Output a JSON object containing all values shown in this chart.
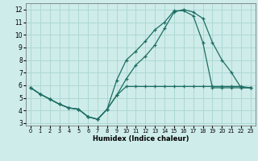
{
  "xlabel": "Humidex (Indice chaleur)",
  "bg_color": "#ceecea",
  "grid_color": "#aed8d4",
  "line_color": "#1e6e64",
  "xlim": [
    -0.5,
    23.5
  ],
  "ylim": [
    2.8,
    12.5
  ],
  "xticks": [
    0,
    1,
    2,
    3,
    4,
    5,
    6,
    7,
    8,
    9,
    10,
    11,
    12,
    13,
    14,
    15,
    16,
    17,
    18,
    19,
    20,
    21,
    22,
    23
  ],
  "yticks": [
    3,
    4,
    5,
    6,
    7,
    8,
    9,
    10,
    11,
    12
  ],
  "line1_x": [
    0,
    1,
    2,
    3,
    4,
    5,
    6,
    7,
    8,
    9,
    10,
    11,
    12,
    13,
    14,
    15,
    16,
    17,
    18,
    19,
    20,
    21,
    22,
    23
  ],
  "line1_y": [
    5.8,
    5.3,
    4.9,
    4.5,
    4.2,
    4.1,
    3.5,
    3.3,
    4.1,
    5.2,
    5.9,
    5.9,
    5.9,
    5.9,
    5.9,
    5.9,
    5.9,
    5.9,
    5.9,
    5.9,
    5.9,
    5.9,
    5.9,
    5.8
  ],
  "line2_x": [
    0,
    1,
    2,
    3,
    4,
    5,
    6,
    7,
    8,
    9,
    10,
    11,
    12,
    13,
    14,
    15,
    16,
    17,
    18,
    19,
    20,
    21,
    22,
    23
  ],
  "line2_y": [
    5.8,
    5.3,
    4.9,
    4.5,
    4.2,
    4.1,
    3.5,
    3.3,
    4.1,
    5.2,
    6.5,
    7.6,
    8.3,
    9.2,
    10.5,
    11.8,
    12.0,
    11.8,
    11.3,
    9.4,
    8.0,
    7.0,
    5.8,
    5.8
  ],
  "line3_x": [
    0,
    1,
    2,
    3,
    4,
    5,
    6,
    7,
    8,
    9,
    10,
    11,
    12,
    13,
    14,
    15,
    16,
    17,
    18,
    19,
    20,
    21,
    22,
    23
  ],
  "line3_y": [
    5.8,
    5.3,
    4.9,
    4.5,
    4.2,
    4.1,
    3.5,
    3.3,
    4.1,
    6.4,
    8.0,
    8.7,
    9.5,
    10.4,
    11.0,
    11.9,
    11.9,
    11.5,
    9.4,
    5.8,
    5.8,
    5.8,
    5.8,
    5.8
  ]
}
